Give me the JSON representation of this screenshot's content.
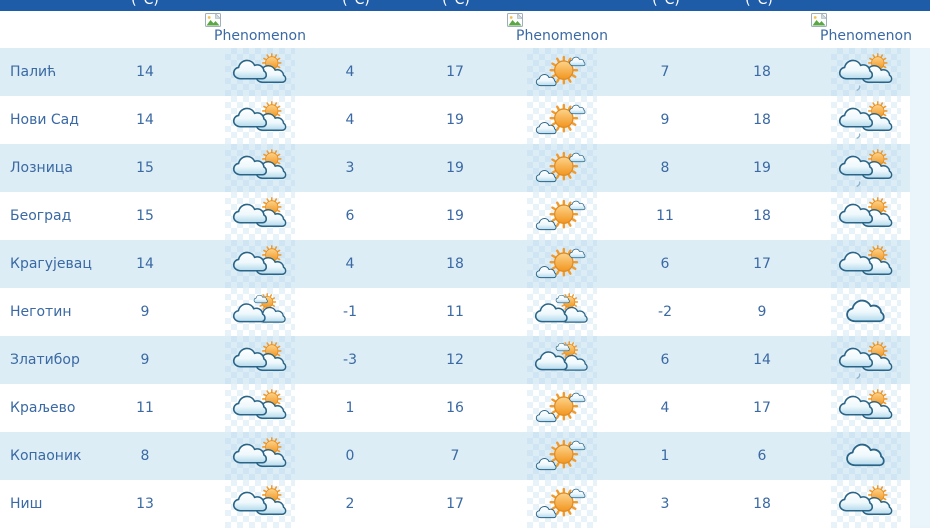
{
  "table": {
    "unit_label": "(°C)",
    "phenomenon_label": "Phenomenon",
    "broken_image_icon": "missing-image-placeholder",
    "colors": {
      "header_bar_blue": "#1f5ca8",
      "row_alternate_blue": "#ddedf6",
      "text_blue": "#3a69a3",
      "sun_orange": "#f39a29",
      "cloud_outline": "#2a6486"
    },
    "icon_types": [
      "partly-cloudy",
      "mostly-sunny",
      "sun-cloud",
      "cloudy",
      "partly-cloudy-drizzle"
    ],
    "rows": [
      {
        "city": "Палић",
        "temp1": "14",
        "phen1": "partly-cloudy",
        "temp2": "4",
        "temp3": "17",
        "phen2": "mostly-sunny",
        "temp4": "7",
        "temp5": "18",
        "phen3": "partly-cloudy-drizzle"
      },
      {
        "city": "Нови Сад",
        "temp1": "14",
        "phen1": "partly-cloudy",
        "temp2": "4",
        "temp3": "19",
        "phen2": "mostly-sunny",
        "temp4": "9",
        "temp5": "18",
        "phen3": "partly-cloudy-drizzle"
      },
      {
        "city": "Лозница",
        "temp1": "15",
        "phen1": "partly-cloudy",
        "temp2": "3",
        "temp3": "19",
        "phen2": "mostly-sunny",
        "temp4": "8",
        "temp5": "19",
        "phen3": "partly-cloudy-drizzle"
      },
      {
        "city": "Београд",
        "temp1": "15",
        "phen1": "partly-cloudy",
        "temp2": "6",
        "temp3": "19",
        "phen2": "mostly-sunny",
        "temp4": "11",
        "temp5": "18",
        "phen3": "partly-cloudy"
      },
      {
        "city": "Крагујевац",
        "temp1": "14",
        "phen1": "partly-cloudy",
        "temp2": "4",
        "temp3": "18",
        "phen2": "mostly-sunny",
        "tem4": "",
        "temp4": "6",
        "temp5": "17",
        "phen3": "partly-cloudy"
      },
      {
        "city": "Неготин",
        "temp1": "9",
        "phen1": "sun-cloud",
        "temp2": "-1",
        "temp3": "11",
        "phen2": "sun-cloud",
        "temp4": "-2",
        "temp5": "9",
        "phen3": "cloudy"
      },
      {
        "city": "Златибор",
        "temp1": "9",
        "phen1": "partly-cloudy",
        "temp2": "-3",
        "temp3": "12",
        "phen2": "sun-cloud",
        "temp4": "6",
        "temp5": "14",
        "phen3": "partly-cloudy-drizzle"
      },
      {
        "city": "Краљево",
        "temp1": "11",
        "phen1": "partly-cloudy",
        "temp2": "1",
        "temp3": "16",
        "phen2": "mostly-sunny",
        "temp4": "4",
        "temp5": "17",
        "phen3": "partly-cloudy"
      },
      {
        "city": "Копаоник",
        "temp1": "8",
        "phen1": "partly-cloudy",
        "temp2": "0",
        "temp3": "7",
        "phen2": "mostly-sunny",
        "temp4": "1",
        "temp5": "6",
        "phen3": "cloudy"
      },
      {
        "city": "Ниш",
        "temp1": "13",
        "phen1": "partly-cloudy",
        "temp2": "2",
        "temp3": "17",
        "phen2": "mostly-sunny",
        "temp4": "3",
        "temp5": "18",
        "phen3": "partly-cloudy"
      }
    ]
  }
}
